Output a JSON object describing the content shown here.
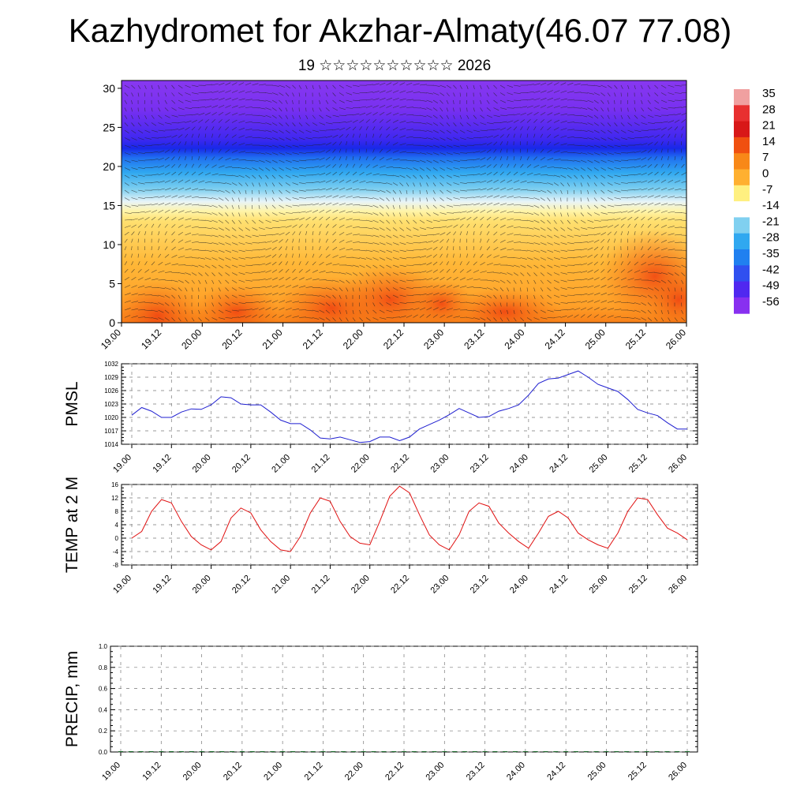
{
  "title": "Kazhydromet for Akzhar-Almaty(46.07 77.08)",
  "subtitle": "19 ☆☆☆☆☆☆☆☆☆☆ 2026",
  "chart_data": [
    {
      "type": "heatmap",
      "panel": "cross-section",
      "x_tick_labels": [
        "19.00",
        "19.12",
        "20.00",
        "20.12",
        "21.00",
        "21.12",
        "22.00",
        "22.12",
        "23.00",
        "23.12",
        "24.00",
        "24.12",
        "25.00",
        "25.12",
        "26.00"
      ],
      "y_tick_labels": [
        "0",
        "5",
        "10",
        "15",
        "20",
        "25",
        "30"
      ],
      "ylim": [
        0,
        31
      ],
      "colorbar": {
        "labels": [
          "35",
          "28",
          "21",
          "14",
          "7",
          "0",
          "-7",
          "-14",
          "-21",
          "-28",
          "-35",
          "-42",
          "-49",
          "-56"
        ],
        "colors": [
          "#f0a0a0",
          "#e83030",
          "#d81818",
          "#f05010",
          "#f88818",
          "#ffb030",
          "#fff080",
          "#ffffff",
          "#80d0f0",
          "#30a8f0",
          "#2080f0",
          "#3050f0",
          "#5028f0",
          "#8830f0"
        ]
      }
    },
    {
      "type": "line",
      "ylabel": "PMSL",
      "ylim": [
        1014,
        1032
      ],
      "y_ticks": [
        1014,
        1017,
        1020,
        1023,
        1026,
        1029,
        1032
      ],
      "x_tick_labels": [
        "19.00",
        "19.12",
        "20.00",
        "20.12",
        "21.00",
        "21.12",
        "22.00",
        "22.12",
        "23.00",
        "23.12",
        "24.00",
        "24.12",
        "25.00",
        "25.12",
        "26.00"
      ],
      "color": "#1f1fd0",
      "values": [
        1020.5,
        1022.2,
        1021.4,
        1020.0,
        1020.0,
        1021.2,
        1021.9,
        1021.8,
        1022.8,
        1024.6,
        1024.4,
        1023.0,
        1022.8,
        1022.8,
        1021.2,
        1019.4,
        1018.6,
        1018.6,
        1017.2,
        1015.4,
        1015.2,
        1015.6,
        1015.0,
        1014.4,
        1014.6,
        1015.6,
        1015.6,
        1014.8,
        1015.6,
        1017.4,
        1018.4,
        1019.4,
        1020.6,
        1022.0,
        1021.0,
        1020.0,
        1020.2,
        1021.4,
        1022.0,
        1022.8,
        1025.0,
        1027.6,
        1028.6,
        1028.8,
        1029.6,
        1030.4,
        1029.0,
        1027.4,
        1026.6,
        1025.8,
        1024.0,
        1021.8,
        1021.0,
        1020.4,
        1018.8,
        1017.4,
        1017.4
      ]
    },
    {
      "type": "line",
      "ylabel": "TEMP at 2 M",
      "ylim": [
        -8,
        16
      ],
      "y_ticks": [
        -8,
        -4,
        0,
        4,
        8,
        12,
        16
      ],
      "x_tick_labels": [
        "19.00",
        "19.12",
        "20.00",
        "20.12",
        "21.00",
        "21.12",
        "22.00",
        "22.12",
        "23.00",
        "23.12",
        "24.00",
        "24.12",
        "25.00",
        "25.12",
        "26.00"
      ],
      "color": "#e01010",
      "values": [
        0,
        2,
        8,
        11.5,
        10.5,
        5,
        0.5,
        -2,
        -3.5,
        -1,
        6,
        9,
        7.5,
        2.5,
        -1,
        -3.5,
        -4,
        0.5,
        7.5,
        12,
        11,
        5,
        0.5,
        -1.5,
        -2,
        5,
        12.5,
        15.5,
        13.5,
        7,
        1,
        -2,
        -3.5,
        1,
        8,
        10.5,
        9.5,
        4.5,
        1.5,
        -1,
        -3,
        1.5,
        6.5,
        8,
        6,
        1.5,
        -0.5,
        -2,
        -3,
        1.5,
        8,
        12,
        11.5,
        7,
        3,
        1.5,
        -0.5
      ]
    },
    {
      "type": "bar",
      "ylabel": "PRECIP, mm",
      "ylim": [
        0,
        1.0
      ],
      "y_ticks": [
        "0.0",
        "0.2",
        "0.4",
        "0.6",
        "0.8",
        "1.0"
      ],
      "x_tick_labels": [
        "19.00",
        "19.12",
        "20.00",
        "20.12",
        "21.00",
        "21.12",
        "22.00",
        "22.12",
        "23.00",
        "23.12",
        "24.00",
        "24.12",
        "25.00",
        "25.12",
        "26.00"
      ],
      "values": [
        0,
        0,
        0,
        0,
        0,
        0,
        0,
        0,
        0,
        0,
        0,
        0,
        0,
        0,
        0,
        0,
        0,
        0,
        0,
        0,
        0,
        0,
        0,
        0,
        0,
        0,
        0,
        0,
        0,
        0,
        0,
        0,
        0,
        0,
        0,
        0,
        0,
        0,
        0,
        0,
        0,
        0,
        0,
        0,
        0,
        0,
        0,
        0,
        0,
        0,
        0,
        0,
        0,
        0,
        0,
        0,
        0
      ]
    }
  ]
}
